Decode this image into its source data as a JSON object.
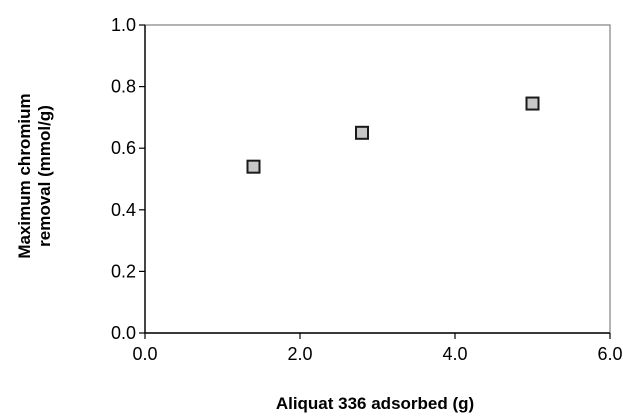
{
  "chart_data": {
    "type": "scatter",
    "title": "",
    "xlabel": "Aliquat 336 adsorbed (g)",
    "ylabel_lines": [
      "Maximum chromium",
      "removal (mmol/g)"
    ],
    "xlim": [
      0,
      6
    ],
    "ylim": [
      0,
      1
    ],
    "x_ticks": [
      "0.0",
      "2.0",
      "4.0",
      "6.0"
    ],
    "y_ticks": [
      "0.0",
      "0.2",
      "0.4",
      "0.6",
      "0.8",
      "1.0"
    ],
    "grid": false,
    "legend": "none",
    "marker": "square",
    "marker_fill": "#c8c8c8",
    "marker_edge": "#1a1a1a",
    "points": [
      {
        "x": 1.4,
        "y": 0.54
      },
      {
        "x": 2.8,
        "y": 0.65
      },
      {
        "x": 5.0,
        "y": 0.745
      }
    ]
  }
}
